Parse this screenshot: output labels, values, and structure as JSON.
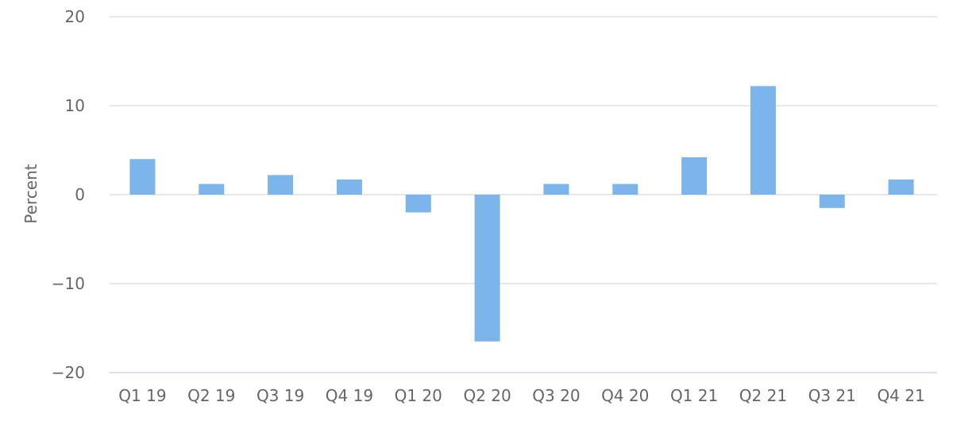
{
  "chart_data": {
    "type": "bar",
    "title": "",
    "xlabel": "",
    "ylabel": "Percent",
    "ylim": [
      -20,
      20
    ],
    "yticks": [
      20,
      10,
      0,
      -10,
      -20
    ],
    "ytick_labels": [
      "20",
      "10",
      "0",
      "−10",
      "−20"
    ],
    "grid": true,
    "legend": "none",
    "color": "#7cb5ec",
    "categories": [
      "Q1 19",
      "Q2 19",
      "Q3 19",
      "Q4 19",
      "Q1 20",
      "Q2 20",
      "Q3 20",
      "Q4 20",
      "Q1 21",
      "Q2 21",
      "Q3 21",
      "Q4 21"
    ],
    "series": [
      {
        "values": [
          4.0,
          1.2,
          2.2,
          1.7,
          -2.0,
          -16.5,
          1.2,
          1.2,
          4.2,
          12.2,
          -1.5,
          1.7
        ]
      }
    ]
  }
}
